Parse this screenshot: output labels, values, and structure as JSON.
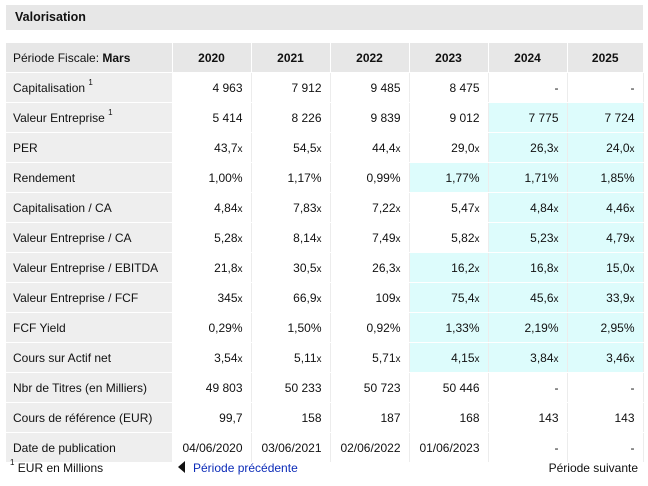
{
  "title": "Valorisation",
  "period_label": "Période Fiscale:",
  "period_value": "Mars",
  "years": [
    "2020",
    "2021",
    "2022",
    "2023",
    "2024",
    "2025"
  ],
  "rows": [
    {
      "label": "Capitalisation",
      "sup": "1",
      "values": [
        "4 963",
        "7 912",
        "9 485",
        "8 475",
        "-",
        "-"
      ],
      "suffix": [
        "",
        "",
        "",
        "",
        "",
        ""
      ],
      "hl": [
        false,
        false,
        false,
        false,
        false,
        false
      ]
    },
    {
      "label": "Valeur Entreprise",
      "sup": "1",
      "values": [
        "5 414",
        "8 226",
        "9 839",
        "9 012",
        "7 775",
        "7 724"
      ],
      "suffix": [
        "",
        "",
        "",
        "",
        "",
        ""
      ],
      "hl": [
        false,
        false,
        false,
        false,
        true,
        true
      ]
    },
    {
      "label": "PER",
      "sup": "",
      "values": [
        "43,7",
        "54,5",
        "44,4",
        "29,0",
        "26,3",
        "24,0"
      ],
      "suffix": [
        "x",
        "x",
        "x",
        "x",
        "x",
        "x"
      ],
      "hl": [
        false,
        false,
        false,
        false,
        true,
        true
      ]
    },
    {
      "label": "Rendement",
      "sup": "",
      "values": [
        "1,00%",
        "1,17%",
        "0,99%",
        "1,77%",
        "1,71%",
        "1,85%"
      ],
      "suffix": [
        "",
        "",
        "",
        "",
        "",
        ""
      ],
      "hl": [
        false,
        false,
        false,
        true,
        true,
        true
      ]
    },
    {
      "label": "Capitalisation / CA",
      "sup": "",
      "values": [
        "4,84",
        "7,83",
        "7,22",
        "5,47",
        "4,84",
        "4,46"
      ],
      "suffix": [
        "x",
        "x",
        "x",
        "x",
        "x",
        "x"
      ],
      "hl": [
        false,
        false,
        false,
        false,
        true,
        true
      ]
    },
    {
      "label": "Valeur Entreprise / CA",
      "sup": "",
      "values": [
        "5,28",
        "8,14",
        "7,49",
        "5,82",
        "5,23",
        "4,79"
      ],
      "suffix": [
        "x",
        "x",
        "x",
        "x",
        "x",
        "x"
      ],
      "hl": [
        false,
        false,
        false,
        false,
        true,
        true
      ]
    },
    {
      "label": "Valeur Entreprise / EBITDA",
      "sup": "",
      "values": [
        "21,8",
        "30,5",
        "26,3",
        "16,2",
        "16,8",
        "15,0"
      ],
      "suffix": [
        "x",
        "x",
        "x",
        "x",
        "x",
        "x"
      ],
      "hl": [
        false,
        false,
        false,
        true,
        true,
        true
      ]
    },
    {
      "label": "Valeur Entreprise / FCF",
      "sup": "",
      "values": [
        "345",
        "66,9",
        "109",
        "75,4",
        "45,6",
        "33,9"
      ],
      "suffix": [
        "x",
        "x",
        "x",
        "x",
        "x",
        "x"
      ],
      "hl": [
        false,
        false,
        false,
        true,
        true,
        true
      ]
    },
    {
      "label": "FCF Yield",
      "sup": "",
      "values": [
        "0,29%",
        "1,50%",
        "0,92%",
        "1,33%",
        "2,19%",
        "2,95%"
      ],
      "suffix": [
        "",
        "",
        "",
        "",
        "",
        ""
      ],
      "hl": [
        false,
        false,
        false,
        true,
        true,
        true
      ]
    },
    {
      "label": "Cours sur Actif net",
      "sup": "",
      "values": [
        "3,54",
        "5,11",
        "5,71",
        "4,15",
        "3,84",
        "3,46"
      ],
      "suffix": [
        "x",
        "x",
        "x",
        "x",
        "x",
        "x"
      ],
      "hl": [
        false,
        false,
        false,
        true,
        true,
        true
      ]
    },
    {
      "label": "Nbr de Titres (en Milliers)",
      "sup": "",
      "values": [
        "49 803",
        "50 233",
        "50 723",
        "50 446",
        "-",
        "-"
      ],
      "suffix": [
        "",
        "",
        "",
        "",
        "",
        ""
      ],
      "hl": [
        false,
        false,
        false,
        false,
        false,
        false
      ]
    },
    {
      "label": "Cours de référence (EUR)",
      "sup": "",
      "values": [
        "99,7",
        "158",
        "187",
        "168",
        "143",
        "143"
      ],
      "suffix": [
        "",
        "",
        "",
        "",
        "",
        ""
      ],
      "hl": [
        false,
        false,
        false,
        false,
        false,
        false
      ]
    },
    {
      "label": "Date de publication",
      "sup": "",
      "values": [
        "04/06/2020",
        "03/06/2021",
        "02/06/2022",
        "01/06/2023",
        "-",
        "-"
      ],
      "suffix": [
        "",
        "",
        "",
        "",
        "",
        ""
      ],
      "hl": [
        false,
        false,
        false,
        false,
        false,
        false
      ]
    }
  ],
  "footer": {
    "note_sup": "1",
    "note": "EUR en Millions",
    "prev": "Période précédente",
    "next": "Période suivante"
  },
  "colors": {
    "highlight": "#ddfcfc",
    "header_bg": "#e7e7e7",
    "label_bg": "#eeeeee",
    "link": "#0b2bb8"
  }
}
